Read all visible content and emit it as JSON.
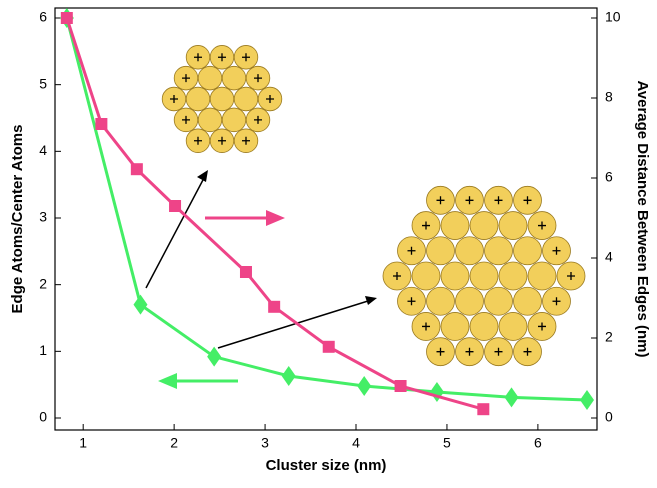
{
  "chart_data": {
    "type": "line",
    "xlabel": "Cluster size (nm)",
    "ylabel": "Edge Atoms/Center Atoms",
    "y2label": "Average Distance Between Edges (nm)",
    "xlim": [
      0.69,
      6.65
    ],
    "xticks": [
      1,
      2,
      3,
      4,
      5,
      6
    ],
    "ylim": [
      -0.18,
      6.15
    ],
    "yticks": [
      0,
      1,
      2,
      3,
      4,
      5,
      6
    ],
    "y2lim": [
      -0.3,
      10.25
    ],
    "y2ticks": [
      0,
      2,
      4,
      6,
      8,
      10
    ],
    "series": [
      {
        "color": "#44ee66",
        "marker": "diamond",
        "x": [
          0.82,
          1.63,
          2.44,
          3.26,
          4.09,
          4.89,
          5.71,
          6.54
        ],
        "values": [
          6.0,
          1.7,
          0.92,
          0.63,
          0.48,
          0.39,
          0.31,
          0.27
        ]
      },
      {
        "color": "#ee4488",
        "marker": "square",
        "axis": "y2",
        "x": [
          0.82,
          1.2,
          1.59,
          2.01,
          2.79,
          3.1,
          3.7,
          4.49,
          5.4
        ],
        "values": [
          10.0,
          7.35,
          6.22,
          5.3,
          3.65,
          2.78,
          1.78,
          0.8,
          0.22
        ]
      }
    ]
  }
}
